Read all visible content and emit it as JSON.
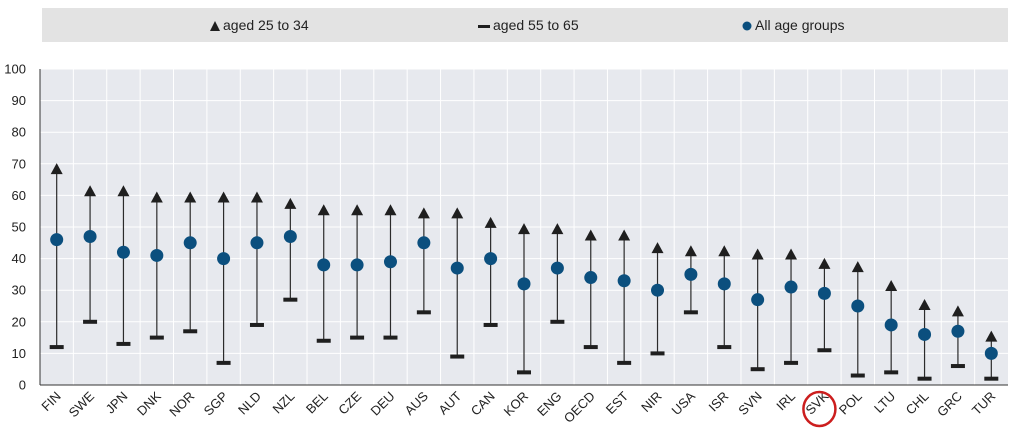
{
  "legend": {
    "young_label": "aged 25 to 34",
    "old_label": "aged 55 to 65",
    "all_label": "All age groups"
  },
  "colors": {
    "young_marker": "#1f1f1f",
    "old_marker": "#1f1f1f",
    "all_marker": "#0b4f7e",
    "whisker": "#2b2b2b",
    "grid": "#ffffff",
    "plot_bg": "#e7e9ee",
    "highlight": "#cc1e1e"
  },
  "chart_data": {
    "type": "scatter",
    "categories": [
      "FIN",
      "SWE",
      "JPN",
      "DNK",
      "NOR",
      "SGP",
      "NLD",
      "NZL",
      "BEL",
      "CZE",
      "DEU",
      "AUS",
      "AUT",
      "CAN",
      "KOR",
      "ENG",
      "OECD",
      "EST",
      "NIR",
      "USA",
      "ISR",
      "SVN",
      "IRL",
      "SVK",
      "POL",
      "LTU",
      "CHL",
      "GRC",
      "TUR"
    ],
    "series": [
      {
        "name": "aged 25 to 34",
        "marker": "triangle",
        "values": [
          68,
          61,
          61,
          59,
          59,
          59,
          59,
          57,
          55,
          55,
          55,
          54,
          54,
          51,
          49,
          49,
          47,
          47,
          43,
          42,
          42,
          41,
          41,
          38,
          37,
          31,
          25,
          23,
          15
        ]
      },
      {
        "name": "aged 55 to 65",
        "marker": "dash",
        "values": [
          12,
          20,
          13,
          15,
          17,
          7,
          19,
          27,
          14,
          15,
          15,
          23,
          9,
          19,
          4,
          20,
          12,
          7,
          10,
          23,
          12,
          5,
          7,
          11,
          3,
          4,
          2,
          6,
          2
        ]
      },
      {
        "name": "All age groups",
        "marker": "circle",
        "values": [
          46,
          47,
          42,
          41,
          45,
          40,
          45,
          47,
          38,
          38,
          39,
          45,
          37,
          40,
          32,
          37,
          34,
          33,
          30,
          35,
          32,
          27,
          31,
          29,
          25,
          19,
          16,
          17,
          10
        ]
      }
    ],
    "ylim": [
      0,
      100
    ],
    "yticks": [
      0,
      10,
      20,
      30,
      40,
      50,
      60,
      70,
      80,
      90,
      100
    ],
    "highlighted_category": "SVK",
    "legend_position": "top",
    "grid": true
  }
}
